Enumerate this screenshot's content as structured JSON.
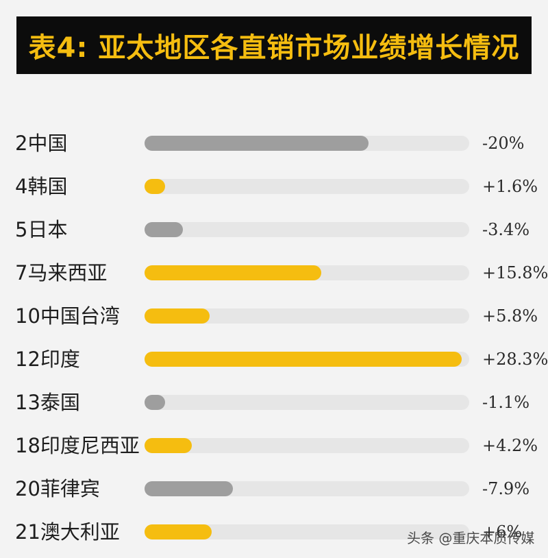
{
  "title": "表4: 亚太地区各直销市场业绩增长情况",
  "watermark": "头条 @重庆本质传媒",
  "colors": {
    "background": "#f3f3f3",
    "title_bg": "#0c0c0c",
    "title_text": "#f5bd10",
    "positive": "#f5bd10",
    "negative": "#9e9e9e",
    "track": "#e6e6e6"
  },
  "chart_data": {
    "type": "bar",
    "orientation": "horizontal",
    "title": "表4: 亚太地区各直销市场业绩增长情况",
    "categories": [
      "2中国",
      "4韩国",
      "5日本",
      "7马来西亚",
      "10中国台湾",
      "12印度",
      "13泰国",
      "18印度尼西亚",
      "20菲律宾",
      "21澳大利亚"
    ],
    "values": [
      -20,
      1.6,
      -3.4,
      15.8,
      5.8,
      28.3,
      -1.1,
      4.2,
      -7.9,
      6
    ],
    "value_labels": [
      "-20%",
      "+1.6%",
      "-3.4%",
      "+15.8%",
      "+5.8%",
      "+28.3%",
      "-1.1%",
      "+4.2%",
      "-7.9%",
      "+6%"
    ],
    "unit": "%",
    "bar_scale_max": 29,
    "legend": "none",
    "grid": false
  }
}
